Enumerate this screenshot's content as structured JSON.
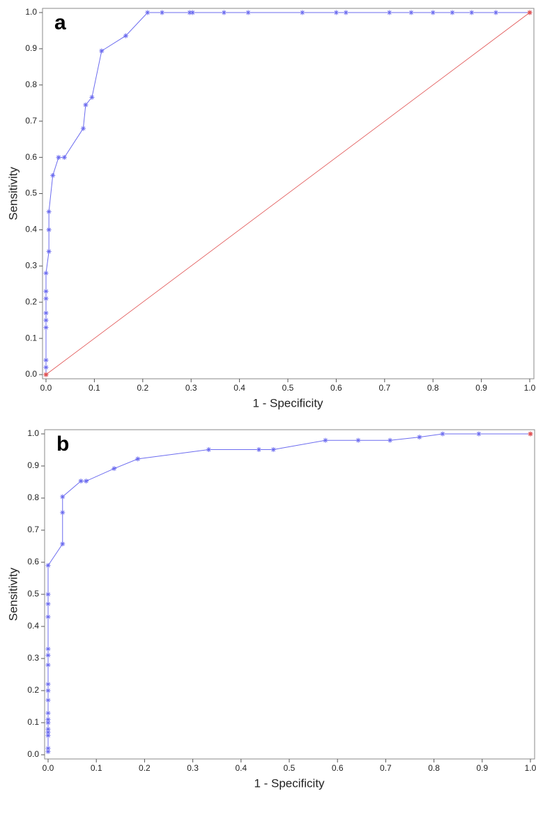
{
  "chart_data": [
    {
      "type": "line",
      "panel_label": "a",
      "x_label": "1 - Specificity",
      "y_label": "Sensitivity",
      "xlim": [
        0,
        1
      ],
      "ylim": [
        0,
        1
      ],
      "xticks": [
        {
          "value": 0,
          "label": "0.0"
        },
        0.1,
        0.2,
        0.3,
        0.4,
        0.5,
        0.6,
        0.7,
        0.8,
        0.9,
        {
          "value": 1,
          "label": "1.0"
        }
      ],
      "yticks": [
        {
          "value": 0,
          "label": "0.0"
        },
        0.1,
        0.2,
        0.3,
        0.4,
        0.5,
        0.6,
        0.7,
        0.8,
        0.9,
        {
          "value": 1,
          "label": "1.0"
        }
      ],
      "color": "#6b6bef",
      "x": [
        0,
        0,
        0,
        0,
        0,
        0,
        0,
        0,
        0,
        0.006,
        0.006,
        0.006,
        0.014,
        0.026,
        0.038,
        0.077,
        0.082,
        0.095,
        0.115,
        0.165,
        0.21,
        0.24,
        0.297,
        0.303,
        0.368,
        0.418,
        0.53,
        0.6,
        0.62,
        0.71,
        0.755,
        0.8,
        0.84,
        0.88,
        0.93,
        1
      ],
      "values": [
        0,
        0.02,
        0.04,
        0.13,
        0.15,
        0.17,
        0.21,
        0.23,
        0.28,
        0.34,
        0.4,
        0.45,
        0.55,
        0.6,
        0.6,
        0.68,
        0.745,
        0.766,
        0.894,
        0.936,
        1,
        1,
        1,
        1,
        1,
        1,
        1,
        1,
        1,
        1,
        1,
        1,
        1,
        1,
        1,
        1
      ],
      "reference": {
        "x": [
          0,
          1
        ],
        "values": [
          0,
          1
        ],
        "color": "#e05050",
        "line": true
      }
    },
    {
      "type": "line",
      "panel_label": "b",
      "x_label": "1 - Specificity",
      "y_label": "Sensitivity",
      "xlim": [
        0,
        1
      ],
      "ylim": [
        0,
        1
      ],
      "xticks": [
        {
          "value": 0,
          "label": "0.0"
        },
        0.1,
        0.2,
        0.3,
        0.4,
        0.5,
        0.6,
        0.7,
        0.8,
        0.9,
        {
          "value": 1,
          "label": "1.0"
        }
      ],
      "yticks": [
        {
          "value": 0,
          "label": "0.0"
        },
        0.1,
        0.2,
        0.3,
        0.4,
        0.5,
        0.6,
        0.7,
        0.8,
        0.9,
        {
          "value": 1,
          "label": "1.0"
        }
      ],
      "color": "#6b6bef",
      "x": [
        0,
        0,
        0,
        0,
        0,
        0,
        0,
        0,
        0,
        0,
        0,
        0,
        0,
        0,
        0,
        0,
        0,
        0,
        0.03,
        0.03,
        0.03,
        0.068,
        0.079,
        0.137,
        0.186,
        0.333,
        0.437,
        0.467,
        0.575,
        0.643,
        0.709,
        0.77,
        0.818,
        0.893,
        1
      ],
      "values": [
        0.01,
        0.02,
        0.06,
        0.07,
        0.08,
        0.1,
        0.11,
        0.13,
        0.17,
        0.2,
        0.22,
        0.28,
        0.31,
        0.33,
        0.43,
        0.47,
        0.5,
        0.59,
        0.657,
        0.755,
        0.804,
        0.853,
        0.853,
        0.892,
        0.922,
        0.951,
        0.951,
        0.951,
        0.98,
        0.98,
        0.98,
        0.99,
        1,
        1,
        1
      ],
      "reference": {
        "x": [
          1
        ],
        "values": [
          1
        ],
        "color": "#e05050",
        "line": false
      }
    }
  ]
}
